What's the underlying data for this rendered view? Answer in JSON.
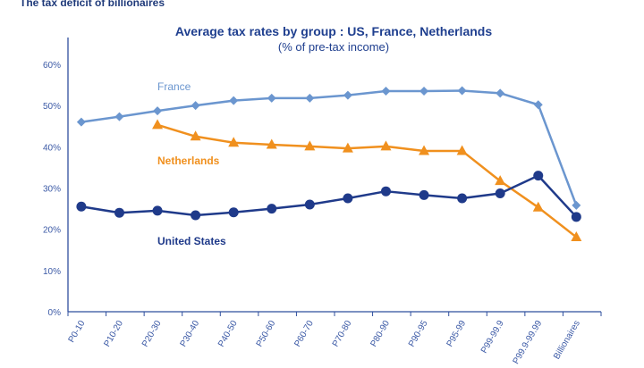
{
  "page": {
    "heading": "The tax deficit of billionaires"
  },
  "chart_data": {
    "type": "line",
    "title": "Average tax rates by group : US, France, Netherlands",
    "subtitle": "(% of pre-tax income)",
    "xlabel": "",
    "ylabel": "",
    "ylim": [
      0,
      60
    ],
    "yticks": [
      "0%",
      "10%",
      "20%",
      "30%",
      "40%",
      "50%",
      "60%"
    ],
    "grid": false,
    "categories": [
      "P0-10",
      "P10-20",
      "P20-30",
      "P30-40",
      "P40-50",
      "P50-60",
      "P60-70",
      "P70-80",
      "P80-90",
      "P90-95",
      "P95-99",
      "P99-99.9",
      "P99.9-99.99",
      "Billionaires"
    ],
    "series": [
      {
        "name": "France",
        "color": "#6b96cf",
        "marker": "diamond",
        "values": [
          46,
          47.3,
          48.7,
          50,
          51.2,
          51.8,
          51.8,
          52.5,
          53.5,
          53.5,
          53.6,
          53,
          50.2,
          25.8
        ]
      },
      {
        "name": "Netherlands",
        "color": "#f0901e",
        "marker": "triangle",
        "values": [
          null,
          null,
          45.3,
          42.5,
          41,
          40.5,
          40.1,
          39.6,
          40.1,
          39,
          39,
          31.7,
          25.3,
          18.1
        ]
      },
      {
        "name": "United States",
        "color": "#1f3a8a",
        "marker": "circle",
        "values": [
          25.5,
          24,
          24.5,
          23.4,
          24.1,
          25,
          26,
          27.5,
          29.2,
          28.3,
          27.5,
          28.7,
          33,
          23
        ]
      }
    ]
  }
}
